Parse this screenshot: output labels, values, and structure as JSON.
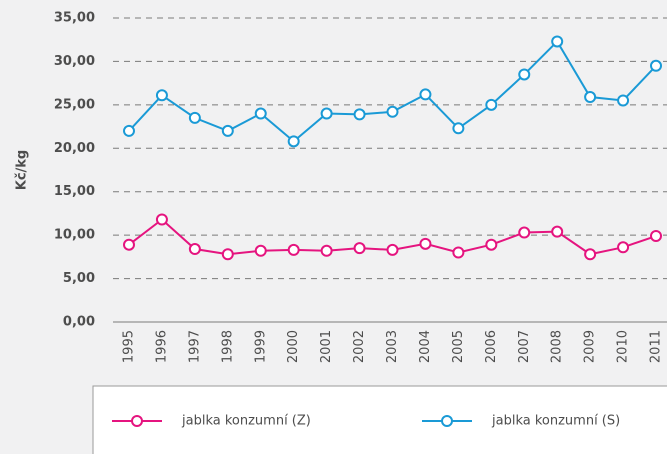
{
  "chart_data": {
    "type": "line",
    "y_label": "Kč/kg",
    "categories": [
      "1995",
      "1996",
      "1997",
      "1998",
      "1999",
      "2000",
      "2001",
      "2002",
      "2003",
      "2004",
      "2005",
      "2006",
      "2007",
      "2008",
      "2009",
      "2010",
      "2011"
    ],
    "series": [
      {
        "name": "jablka konzumní (Z)",
        "color": "#e5147f",
        "values": [
          8.9,
          11.8,
          8.4,
          7.8,
          8.2,
          8.3,
          8.2,
          8.5,
          8.3,
          9.0,
          8.0,
          8.9,
          10.3,
          10.4,
          7.8,
          8.6,
          9.9
        ]
      },
      {
        "name": "jablka konzumní (S)",
        "color": "#1a9ad6",
        "values": [
          22.0,
          26.1,
          23.5,
          22.0,
          24.0,
          20.8,
          24.0,
          23.9,
          24.2,
          26.2,
          22.3,
          25.0,
          28.5,
          32.3,
          25.9,
          25.5,
          29.5
        ]
      }
    ],
    "ylim": [
      0,
      35
    ],
    "yticks": [
      {
        "value": 0,
        "label": "0,00"
      },
      {
        "value": 5,
        "label": "5,00"
      },
      {
        "value": 10,
        "label": "10,00"
      },
      {
        "value": 15,
        "label": "15,00"
      },
      {
        "value": 20,
        "label": "20,00"
      },
      {
        "value": 25,
        "label": "25,00"
      },
      {
        "value": 30,
        "label": "30,00"
      },
      {
        "value": 35,
        "label": "35,00"
      }
    ],
    "grid": true
  }
}
